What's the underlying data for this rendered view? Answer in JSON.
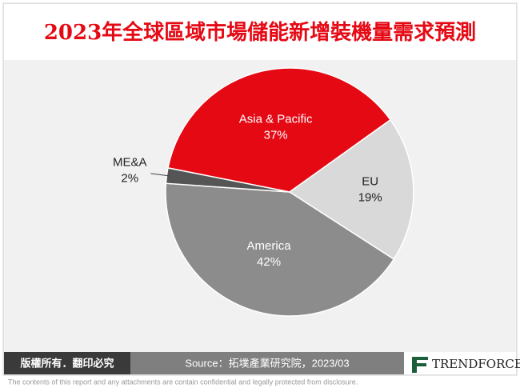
{
  "chart_data": {
    "type": "pie",
    "title": "2023年全球區域市場儲能新增裝機量需求預測",
    "categories": [
      "Asia & Pacific",
      "EU",
      "America",
      "ME&A"
    ],
    "values": [
      37,
      19,
      42,
      2
    ],
    "value_labels": [
      "37%",
      "19%",
      "42%",
      "2%"
    ],
    "colors": [
      "#e50914",
      "#d9d9d9",
      "#8c8c8c",
      "#555555"
    ]
  },
  "footer": {
    "rights": "版權所有．翻印必究",
    "source": "Source：拓墣產業研究院，2023/03",
    "logo": "TRENDFORCE",
    "disclaimer": "The contents of this report and any attachments are contain confidential and legally protected from disclosure."
  }
}
